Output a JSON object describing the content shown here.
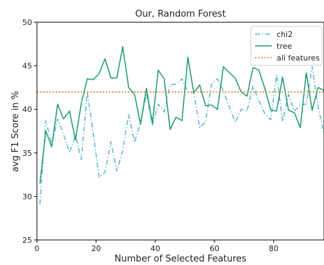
{
  "chart_data": {
    "type": "line",
    "title": "Our, Random Forest",
    "xlabel": "Number of Selected Features",
    "ylabel": "avg F1 Score in %",
    "xlim": [
      0,
      97
    ],
    "ylim": [
      25,
      50
    ],
    "xticks": [
      0,
      20,
      40,
      60,
      80
    ],
    "yticks": [
      25,
      30,
      35,
      40,
      45,
      50
    ],
    "grid": false,
    "legend_position": "top-right",
    "series": [
      {
        "name": "chi2",
        "style": "dashdot",
        "color": "#5ab4d6",
        "x": [
          1,
          3,
          5,
          7,
          9,
          11,
          13,
          15,
          17,
          19,
          21,
          23,
          25,
          27,
          29,
          31,
          33,
          35,
          37,
          39,
          41,
          43,
          45,
          47,
          49,
          51,
          53,
          55,
          57,
          59,
          61,
          63,
          65,
          67,
          69,
          71,
          73,
          75,
          77,
          79,
          81,
          83,
          85,
          87,
          89,
          91,
          93,
          95,
          97
        ],
        "y": [
          29.1,
          38.7,
          36.0,
          38.9,
          37.1,
          35.0,
          37.0,
          34.2,
          42.0,
          37.3,
          32.2,
          32.8,
          36.3,
          32.9,
          35.3,
          39.4,
          36.2,
          38.5,
          41.8,
          38.2,
          40.6,
          39.7,
          42.8,
          42.9,
          43.5,
          42.0,
          41.9,
          37.9,
          38.6,
          42.9,
          43.5,
          42.1,
          40.3,
          38.5,
          40.0,
          39.8,
          42.7,
          41.0,
          39.5,
          38.8,
          44.0,
          38.6,
          41.7,
          39.8,
          40.5,
          40.6,
          44.9,
          40.3,
          37.3
        ]
      },
      {
        "name": "tree",
        "style": "solid",
        "color": "#1a9a6c",
        "x": [
          1,
          3,
          5,
          7,
          9,
          11,
          13,
          15,
          17,
          19,
          21,
          23,
          25,
          27,
          29,
          31,
          33,
          35,
          37,
          39,
          41,
          43,
          45,
          47,
          49,
          51,
          53,
          55,
          57,
          59,
          61,
          63,
          65,
          67,
          69,
          71,
          73,
          75,
          77,
          79,
          81,
          83,
          85,
          87,
          89,
          91,
          93,
          95,
          97
        ],
        "y": [
          31.5,
          37.5,
          35.7,
          40.6,
          38.9,
          39.8,
          36.5,
          40.7,
          43.5,
          43.4,
          44.1,
          45.8,
          43.6,
          43.6,
          47.2,
          42.5,
          41.7,
          38.3,
          42.4,
          38.4,
          44.5,
          43.5,
          37.7,
          39.1,
          38.7,
          46.0,
          41.9,
          42.8,
          40.4,
          40.5,
          40.0,
          44.9,
          44.2,
          43.6,
          42.0,
          41.5,
          44.8,
          44.5,
          42.4,
          39.9,
          39.8,
          43.7,
          39.9,
          39.6,
          37.9,
          44.2,
          39.9,
          42.5,
          42.2
        ]
      },
      {
        "name": "all features",
        "style": "dotted",
        "color": "#e07020",
        "x": [
          0,
          97
        ],
        "y": [
          42.0,
          42.0
        ]
      }
    ]
  }
}
